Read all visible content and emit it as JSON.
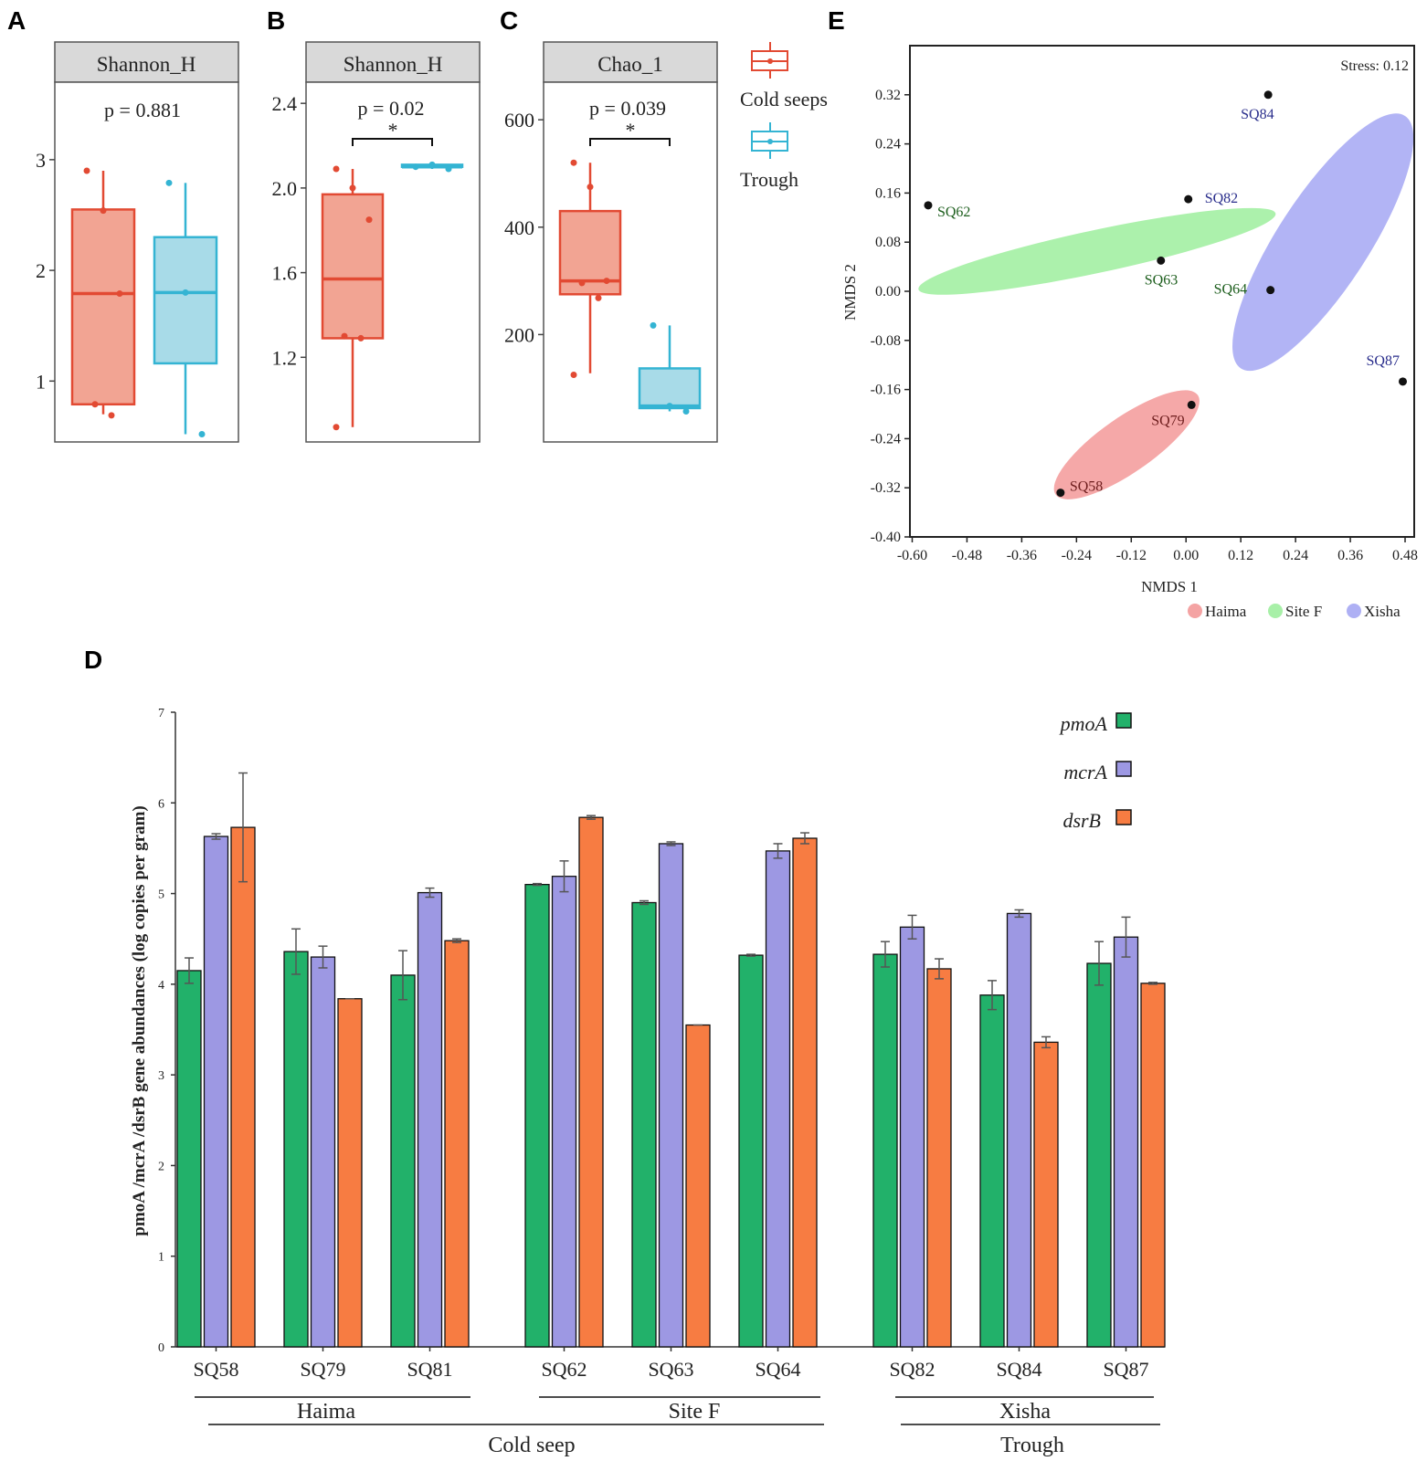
{
  "panels": {
    "A": {
      "letter": "A",
      "strip": "Shannon_H",
      "pvalue": "p = 0.881",
      "yticks": [
        "1",
        "2",
        "3"
      ],
      "tick_values": [
        1,
        2,
        3
      ],
      "ylim": [
        0.45,
        3.7
      ],
      "groups": [
        {
          "name": "Cold seeps",
          "q1": 0.79,
          "median": 1.79,
          "q3": 2.55,
          "wlo": 0.7,
          "whi": 2.9,
          "points": [
            2.9,
            2.54,
            1.79,
            0.79,
            0.69
          ]
        },
        {
          "name": "Trough",
          "q1": 1.16,
          "median": 1.8,
          "q3": 2.3,
          "wlo": 0.52,
          "whi": 2.79,
          "points": [
            2.79,
            1.8,
            0.52
          ]
        }
      ]
    },
    "B": {
      "letter": "B",
      "strip": "Shannon_H",
      "pvalue": "p = 0.02",
      "sig": "*",
      "yticks": [
        "1.2",
        "1.6",
        "2.0",
        "2.4"
      ],
      "tick_values": [
        1.2,
        1.6,
        2.0,
        2.4
      ],
      "ylim": [
        0.8,
        2.5
      ],
      "groups": [
        {
          "name": "Cold seeps",
          "q1": 1.29,
          "median": 1.57,
          "q3": 1.97,
          "wlo": 0.87,
          "whi": 2.09,
          "points": [
            2.09,
            2.0,
            1.85,
            1.3,
            1.29,
            0.87
          ]
        },
        {
          "name": "Trough",
          "q1": 2.1,
          "median": 2.1,
          "q3": 2.11,
          "wlo": 2.09,
          "whi": 2.11,
          "points": [
            2.1,
            2.11,
            2.09
          ]
        }
      ]
    },
    "C": {
      "letter": "C",
      "strip": "Chao_1",
      "pvalue": "p = 0.039",
      "sig": "*",
      "yticks": [
        "200",
        "400",
        "600"
      ],
      "tick_values": [
        200,
        400,
        600
      ],
      "ylim": [
        0,
        670
      ],
      "groups": [
        {
          "name": "Cold seeps",
          "q1": 275,
          "median": 300,
          "q3": 430,
          "wlo": 128,
          "whi": 520,
          "points": [
            520,
            475,
            300,
            296,
            268,
            125
          ]
        },
        {
          "name": "Trough",
          "q1": 63,
          "median": 67,
          "q3": 137,
          "wlo": 57,
          "whi": 217,
          "points": [
            217,
            67,
            57
          ]
        }
      ]
    },
    "legend_bc": {
      "items": [
        "Cold seeps",
        "Trough"
      ]
    },
    "E": {
      "letter": "E",
      "stress": "Stress: 0.12",
      "xlabel": "NMDS 1",
      "ylabel": "NMDS 2",
      "xticks": [
        "-0.60",
        "-0.48",
        "-0.36",
        "-0.24",
        "-0.12",
        "0.00",
        "0.12",
        "0.24",
        "0.36",
        "0.48"
      ],
      "xtick_values": [
        -0.6,
        -0.48,
        -0.36,
        -0.24,
        -0.12,
        0.0,
        0.12,
        0.24,
        0.36,
        0.48
      ],
      "yticks": [
        "0.32",
        "0.24",
        "0.16",
        "0.08",
        "0.00",
        "-0.08",
        "-0.16",
        "-0.24",
        "-0.32",
        "-0.40"
      ],
      "ytick_values": [
        0.32,
        0.24,
        0.16,
        0.08,
        0.0,
        -0.08,
        -0.16,
        -0.24,
        -0.32,
        -0.4
      ],
      "xlim": [
        -0.605,
        0.5
      ],
      "ylim": [
        -0.4,
        0.4
      ],
      "legend": [
        {
          "label": "Haima",
          "color": "#f4a3a3"
        },
        {
          "label": "Site F",
          "color": "#a8f0a8"
        },
        {
          "label": "Xisha",
          "color": "#aeb0f4"
        }
      ]
    },
    "D": {
      "letter": "D",
      "ylabel": "pmoA /mcrA /dsrB gene abundances (log copies per gram)",
      "yticks": [
        "0",
        "1",
        "2",
        "3",
        "4",
        "5",
        "6",
        "7"
      ],
      "tick_values": [
        0,
        1,
        2,
        3,
        4,
        5,
        6,
        7
      ],
      "ylim": [
        0,
        7
      ],
      "groups_l1": [
        "Haima",
        "Site F",
        "Xisha"
      ],
      "groups_l2": [
        "Cold seep",
        "Trough"
      ]
    }
  },
  "chart_data": [
    {
      "type": "box",
      "title": "Shannon_H",
      "panel": "A",
      "pvalue": "p = 0.881",
      "groups": [
        "Cold seeps",
        "Trough"
      ],
      "ylim": [
        0.45,
        3.7
      ]
    },
    {
      "type": "box",
      "title": "Shannon_H",
      "panel": "B",
      "pvalue": "p = 0.02",
      "groups": [
        "Cold seeps",
        "Trough"
      ],
      "ylim": [
        0.8,
        2.5
      ]
    },
    {
      "type": "box",
      "title": "Chao_1",
      "panel": "C",
      "pvalue": "p = 0.039",
      "groups": [
        "Cold seeps",
        "Trough"
      ],
      "ylim": [
        0,
        670
      ]
    },
    {
      "type": "bar",
      "panel": "D",
      "categories": [
        "SQ58",
        "SQ79",
        "SQ81",
        "SQ62",
        "SQ63",
        "SQ64",
        "SQ82",
        "SQ84",
        "SQ87"
      ],
      "ylabel": "pmoA /mcrA /dsrB gene abundances (log copies per gram)",
      "ylim": [
        0,
        7
      ],
      "series": [
        {
          "name": "pmoA",
          "color": "#22b16a",
          "values": [
            4.15,
            4.36,
            4.1,
            5.1,
            4.9,
            4.32,
            4.33,
            3.88,
            4.23
          ],
          "errors": [
            0.14,
            0.25,
            0.27,
            0.01,
            0.02,
            0.01,
            0.14,
            0.16,
            0.24
          ]
        },
        {
          "name": "mcrA",
          "color": "#9d98e3",
          "values": [
            5.63,
            4.3,
            5.01,
            5.19,
            5.55,
            5.47,
            4.63,
            4.78,
            4.52
          ],
          "errors": [
            0.03,
            0.12,
            0.05,
            0.17,
            0.02,
            0.08,
            0.13,
            0.04,
            0.22
          ]
        },
        {
          "name": "dsrB",
          "color": "#f77c42",
          "values": [
            5.73,
            3.84,
            4.48,
            5.84,
            3.55,
            5.61,
            4.17,
            3.36,
            4.01
          ],
          "errors": [
            0.6,
            0.0,
            0.02,
            0.02,
            0.0,
            0.06,
            0.11,
            0.06,
            0.01
          ]
        }
      ]
    },
    {
      "type": "scatter",
      "panel": "E",
      "title": "Stress: 0.12",
      "xlabel": "NMDS 1",
      "ylabel": "NMDS 2",
      "xlim": [
        -0.605,
        0.5
      ],
      "ylim": [
        -0.4,
        0.4
      ],
      "points": [
        {
          "label": "SQ84",
          "x": 0.18,
          "y": 0.32,
          "group": "Xisha"
        },
        {
          "label": "SQ82",
          "x": 0.005,
          "y": 0.15,
          "group": "Xisha"
        },
        {
          "label": "SQ62",
          "x": -0.565,
          "y": 0.14,
          "group": "Site F"
        },
        {
          "label": "SQ63",
          "x": -0.055,
          "y": 0.05,
          "group": "Site F"
        },
        {
          "label": "SQ64",
          "x": 0.185,
          "y": 0.002,
          "group": "Site F"
        },
        {
          "label": "SQ87",
          "x": 0.475,
          "y": -0.147,
          "group": "Xisha"
        },
        {
          "label": "SQ79",
          "x": 0.012,
          "y": -0.185,
          "group": "Haima"
        },
        {
          "label": "SQ58",
          "x": -0.275,
          "y": -0.328,
          "group": "Haima"
        }
      ],
      "ellipses": [
        {
          "group": "Xisha",
          "color": "#aeb0f4",
          "cx": 0.3,
          "cy": 0.08,
          "rx": 0.33,
          "ry": 0.1,
          "angle_deg": -57
        },
        {
          "group": "Site F",
          "color": "#a8f0a8",
          "cx": -0.195,
          "cy": 0.065,
          "rx": 0.4,
          "ry": 0.047,
          "angle_deg": -12
        },
        {
          "group": "Haima",
          "color": "#f4a3a3",
          "cx": -0.13,
          "cy": -0.25,
          "rx": 0.19,
          "ry": 0.06,
          "angle_deg": -35
        }
      ]
    }
  ]
}
